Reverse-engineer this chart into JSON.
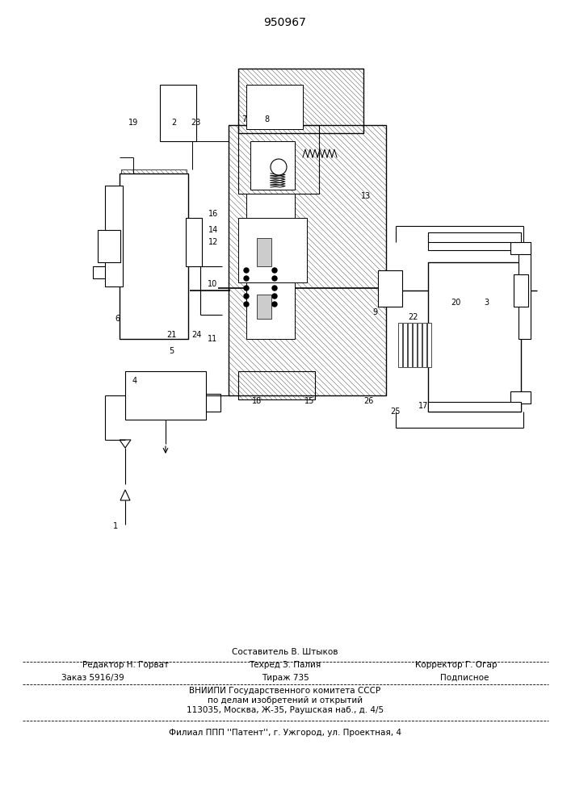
{
  "title": "950967",
  "bg_color": "#ffffff",
  "line_color": "#000000",
  "footer": {
    "line1": "Составитель В. Штыков",
    "editor": "Редактор Н. Горват",
    "tekhred": "Техред З. Палия",
    "corrector": "Корректор Г. Огар",
    "order": "Заказ 5916/39",
    "tirazh": "Тираж 735",
    "podpisnoe": "Подписное",
    "vniipи": "ВНИИПИ Государственного комитета СССР",
    "po_delam": "по делам изобретений и открытий",
    "address": "113035, Москва, Ж-35, Раушская наб., д. 4/5",
    "filial": "Филиал ППП ''Патент'', г. Ужгород, ул. Проектная, 4"
  }
}
